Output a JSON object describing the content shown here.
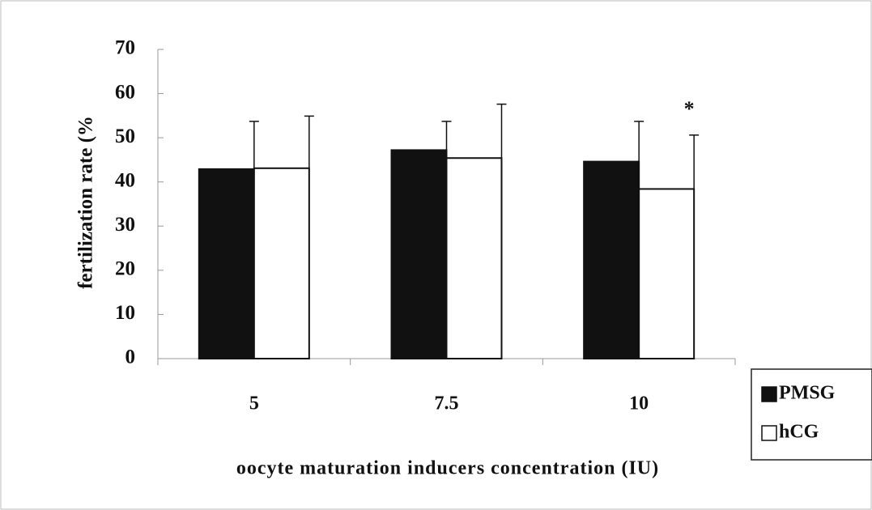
{
  "chart_data": {
    "type": "bar",
    "xlabel": "oocyte maturation inducers concentration (IU)",
    "ylabel": "fertilization rate (%",
    "categories": [
      "5",
      "7.5",
      "10"
    ],
    "series": [
      {
        "name": "PMSG",
        "color": "#111111",
        "values": [
          42.9,
          47.2,
          44.6
        ],
        "errors": [
          10.8,
          6.5,
          9.1
        ]
      },
      {
        "name": "hCG",
        "color": "#ffffff",
        "values": [
          43.1,
          45.4,
          38.4
        ],
        "errors": [
          11.8,
          12.2,
          12.2
        ]
      }
    ],
    "annotations": [
      {
        "text": "*",
        "series": "hCG",
        "category": "10"
      }
    ],
    "ylim": [
      0,
      70
    ],
    "yticks": [
      0,
      10,
      20,
      30,
      40,
      50,
      60,
      70
    ],
    "legend": "bottom-right",
    "grid": false
  }
}
